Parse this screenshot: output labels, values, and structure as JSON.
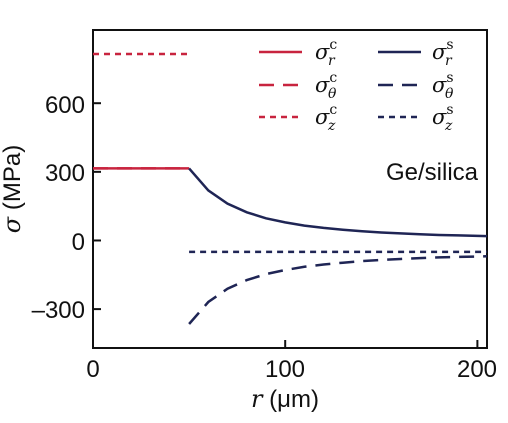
{
  "chart_data": {
    "type": "line",
    "xlabel": {
      "var": "r",
      "unit": "(μm)"
    },
    "ylabel": {
      "var": "σ",
      "unit": "(MPa)"
    },
    "xlim": [
      0,
      205
    ],
    "ylim": [
      -470,
      920
    ],
    "xticks": [
      0,
      100,
      200
    ],
    "xtick_labels": [
      "0",
      "100",
      "200"
    ],
    "yticks": [
      -300,
      0,
      300,
      600
    ],
    "ytick_labels": [
      "–300",
      "0",
      "300",
      "600"
    ],
    "annotation": "Ge/silica",
    "grid": false,
    "legend_position": "top-right",
    "colors": {
      "core": "#c8243f",
      "shell": "#1f2555"
    },
    "series": [
      {
        "key": "sr_c",
        "legend": {
          "sym": "σ",
          "sub": "r",
          "sup": "c"
        },
        "color": "#c8243f",
        "dash": "solid",
        "x": [
          0,
          50
        ],
        "y": [
          315,
          315
        ]
      },
      {
        "key": "st_c",
        "legend": {
          "sym": "σ",
          "sub": "θ",
          "sup": "c"
        },
        "color": "#c8243f",
        "dash": "long",
        "x": [
          0,
          50
        ],
        "y": [
          315,
          315
        ]
      },
      {
        "key": "sz_c",
        "legend": {
          "sym": "σ",
          "sub": "z",
          "sup": "c"
        },
        "color": "#c8243f",
        "dash": "short",
        "x": [
          0,
          50
        ],
        "y": [
          815,
          815
        ]
      },
      {
        "key": "sr_s",
        "legend": {
          "sym": "σ",
          "sub": "r",
          "sup": "s"
        },
        "color": "#1f2555",
        "dash": "solid",
        "x": [
          50,
          60,
          70,
          80,
          90,
          100,
          110,
          120,
          130,
          140,
          150,
          160,
          170,
          180,
          190,
          205
        ],
        "y": [
          315,
          219,
          161,
          123,
          97,
          79,
          65,
          55,
          47,
          40,
          35,
          31,
          27,
          24,
          22,
          19
        ]
      },
      {
        "key": "st_s",
        "legend": {
          "sym": "σ",
          "sub": "θ",
          "sup": "s"
        },
        "color": "#1f2555",
        "dash": "long",
        "x": [
          50,
          60,
          70,
          80,
          90,
          100,
          110,
          120,
          130,
          140,
          150,
          160,
          170,
          180,
          190,
          205
        ],
        "y": [
          -365,
          -269,
          -211,
          -173,
          -147,
          -129,
          -115,
          -105,
          -97,
          -90,
          -85,
          -81,
          -77,
          -74,
          -72,
          -69
        ]
      },
      {
        "key": "sz_s",
        "legend": {
          "sym": "σ",
          "sub": "z",
          "sup": "s"
        },
        "color": "#1f2555",
        "dash": "short",
        "x": [
          50,
          205
        ],
        "y": [
          -50,
          -50
        ]
      }
    ]
  }
}
